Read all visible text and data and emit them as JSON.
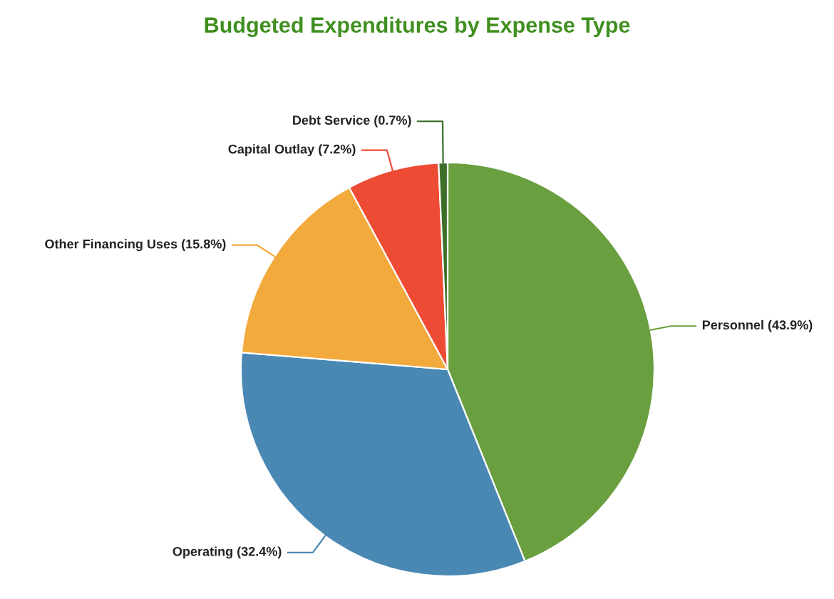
{
  "chart_data": {
    "type": "pie",
    "title": "Budgeted Expenditures by Expense Type",
    "categories": [
      "Personnel",
      "Operating",
      "Other Financing Uses",
      "Capital Outlay",
      "Debt Service"
    ],
    "values": [
      43.9,
      32.4,
      15.8,
      7.2,
      0.7
    ],
    "value_labels": [
      "(43.9%)",
      "(32.4%)",
      "(15.8%)",
      "(7.2%)",
      "(0.7%)"
    ],
    "colors": [
      "#6a9f3f",
      "#4a88b4",
      "#f2aa3c",
      "#ee4b35",
      "#3e6f2a"
    ],
    "legend": false
  }
}
